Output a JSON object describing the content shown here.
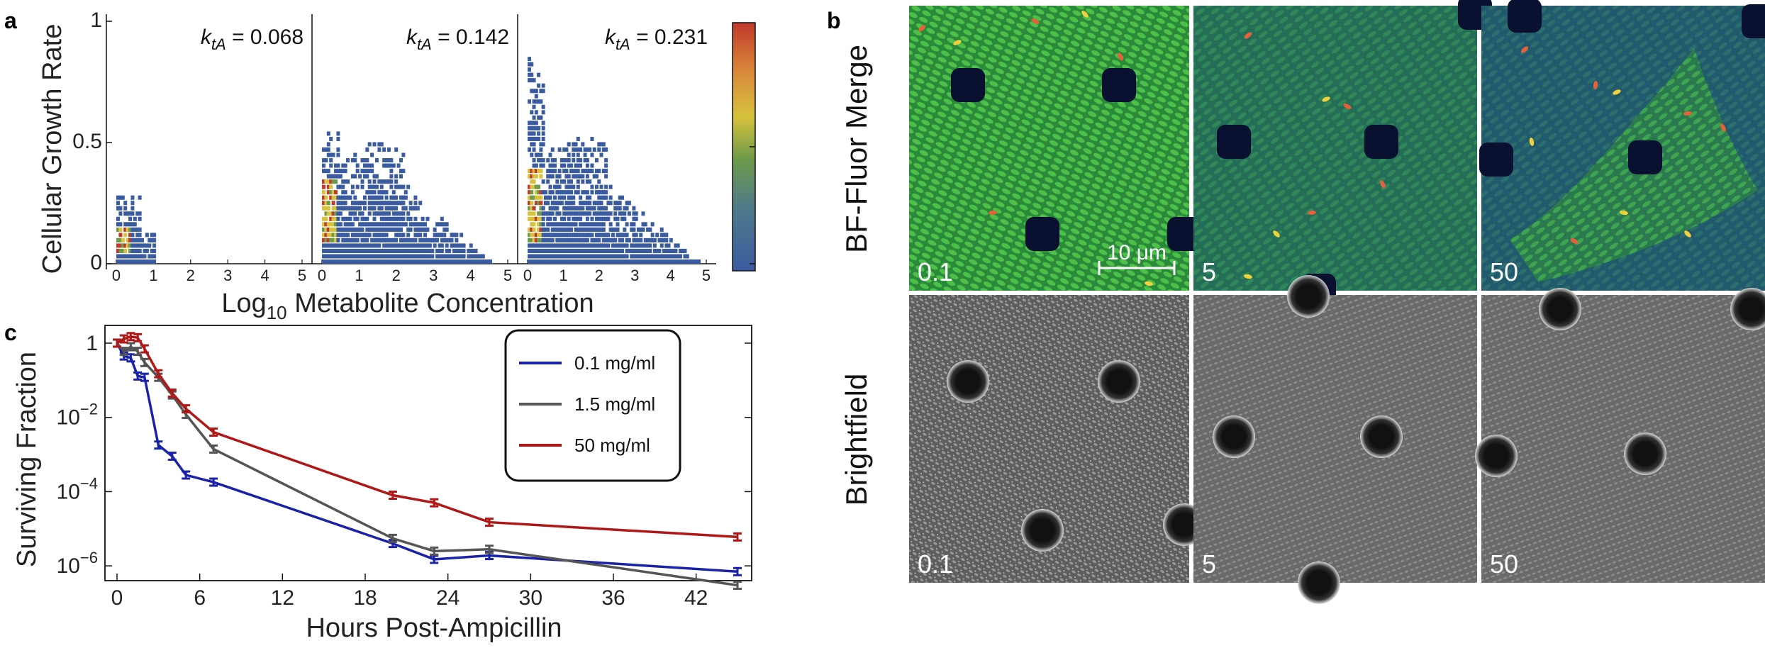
{
  "panel_a": {
    "letter": "a",
    "ylabel": "Cellular Growth Rate",
    "xlabel_prefix": "Log",
    "xlabel_sub": "10",
    "xlabel_suffix": " Metabolite Concentration",
    "yticks": [
      "0",
      "0.5",
      "1"
    ],
    "xticks": [
      "0",
      "1",
      "2",
      "3",
      "4",
      "5"
    ],
    "kta_symbol": "k",
    "kta_sub": "tA",
    "subplots": [
      {
        "kta_value": "= 0.068",
        "max_x": 1.0,
        "peak_y": 0.1
      },
      {
        "kta_value": "= 0.142",
        "max_x": 4.5,
        "peak_y": 0.25
      },
      {
        "kta_value": "= 0.231",
        "max_x": 4.8,
        "peak_y": 0.28
      }
    ],
    "colors": {
      "low": "#3b5ba0",
      "mid": "#d6c23d",
      "high": "#c0392b"
    }
  },
  "chart_data": [
    {
      "type": "heatmap",
      "xlabel": "Log10 Metabolite Concentration",
      "ylabel": "Cellular Growth Rate",
      "xlim": [
        0,
        5
      ],
      "ylim": [
        0,
        1
      ],
      "panels": [
        {
          "annotation": "k_tA = 0.068"
        },
        {
          "annotation": "k_tA = 0.142"
        },
        {
          "annotation": "k_tA = 0.231"
        }
      ],
      "colorbar": true
    },
    {
      "type": "line",
      "xlabel": "Hours Post-Ampicillin",
      "ylabel": "Surviving Fraction",
      "yscale": "log",
      "xlim": [
        0,
        45
      ],
      "ylim": [
        5e-07,
        3
      ],
      "xticks": [
        0,
        6,
        12,
        18,
        24,
        30,
        36,
        42
      ],
      "legend_position": "top-right",
      "series": [
        {
          "name": "0.1 mg/ml",
          "color": "#1a22a8",
          "x": [
            0,
            0.5,
            1,
            1.5,
            2,
            3,
            4,
            5,
            7,
            20,
            23,
            27,
            45
          ],
          "y": [
            1,
            0.45,
            0.4,
            0.13,
            0.12,
            0.0018,
            0.0009,
            0.00028,
            0.00018,
            4e-06,
            1.5e-06,
            1.9e-06,
            7e-07
          ]
        },
        {
          "name": "1.5 mg/ml",
          "color": "#555555",
          "x": [
            0,
            0.5,
            1,
            1.5,
            2,
            3,
            4,
            5,
            7,
            20,
            23,
            27,
            45
          ],
          "y": [
            1,
            0.6,
            0.8,
            0.6,
            0.3,
            0.12,
            0.04,
            0.012,
            0.0014,
            5.5e-06,
            2.5e-06,
            2.8e-06,
            3e-07
          ]
        },
        {
          "name": "50  mg/ml",
          "color": "#b01818",
          "x": [
            0,
            0.5,
            1,
            1.5,
            2,
            3,
            4,
            5,
            7,
            20,
            23,
            27,
            45
          ],
          "y": [
            1,
            1.3,
            1.5,
            1.4,
            0.7,
            0.15,
            0.045,
            0.017,
            0.004,
            8e-05,
            5e-05,
            1.5e-05,
            6e-06
          ]
        }
      ]
    }
  ],
  "panel_c": {
    "letter": "c",
    "ylabel": "Surviving Fraction",
    "xlabel": "Hours Post-Ampicillin",
    "yticks": [
      {
        "base": "1",
        "exp": "",
        "value": 1
      },
      {
        "base": "10",
        "exp": "−2",
        "value": 0.01
      },
      {
        "base": "10",
        "exp": "−4",
        "value": 0.0001
      },
      {
        "base": "10",
        "exp": "−6",
        "value": 1e-06
      }
    ],
    "xticks": [
      "0",
      "6",
      "12",
      "18",
      "24",
      "30",
      "36",
      "42"
    ]
  },
  "panel_b": {
    "letter": "b",
    "row_top_label": "BF-Fluor Merge",
    "row_bottom_label": "Brightfield",
    "image_labels": [
      "0.1",
      "5",
      "50"
    ],
    "scale_bar": "10 μm",
    "colors": {
      "merge_green": "#2f9e3a",
      "merge_blue": "#1a3a8a",
      "pillar": "#0a1030",
      "bf_gray": "#6e6e6e"
    }
  }
}
